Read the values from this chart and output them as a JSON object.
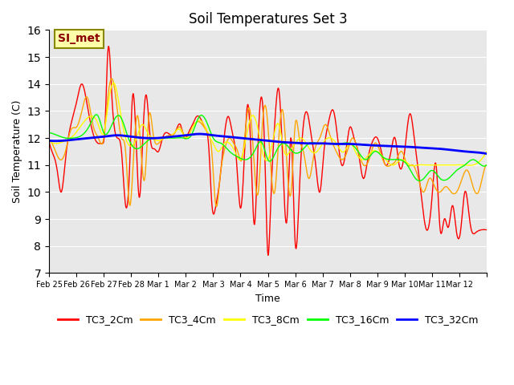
{
  "title": "Soil Temperatures Set 3",
  "xlabel": "Time",
  "ylabel": "Soil Temperature (C)",
  "ylim": [
    7.0,
    16.0
  ],
  "yticks": [
    7.0,
    8.0,
    9.0,
    10.0,
    11.0,
    12.0,
    13.0,
    14.0,
    15.0,
    16.0
  ],
  "bg_color": "#e8e8e8",
  "legend_labels": [
    "TC3_2Cm",
    "TC3_4Cm",
    "TC3_8Cm",
    "TC3_16Cm",
    "TC3_32Cm"
  ],
  "legend_colors": [
    "red",
    "orange",
    "yellow",
    "lime",
    "blue"
  ],
  "annotation_text": "SI_met",
  "annotation_bg": "#ffffaa",
  "annotation_border": "#888800",
  "x_tick_positions": [
    0,
    1,
    2,
    3,
    4,
    5,
    6,
    7,
    8,
    9,
    10,
    11,
    12,
    13,
    14,
    15,
    16
  ],
  "x_tick_labels": [
    "Feb 25",
    "Feb 26",
    "Feb 27",
    "Feb 28",
    "Mar 1",
    "Mar 2",
    "Mar 3",
    "Mar 4",
    "Mar 5",
    "Mar 6",
    "Mar 7",
    "Mar 8",
    "Mar 9",
    "Mar 10",
    "Mar 11",
    "Mar 12",
    ""
  ],
  "n_points": 1000
}
